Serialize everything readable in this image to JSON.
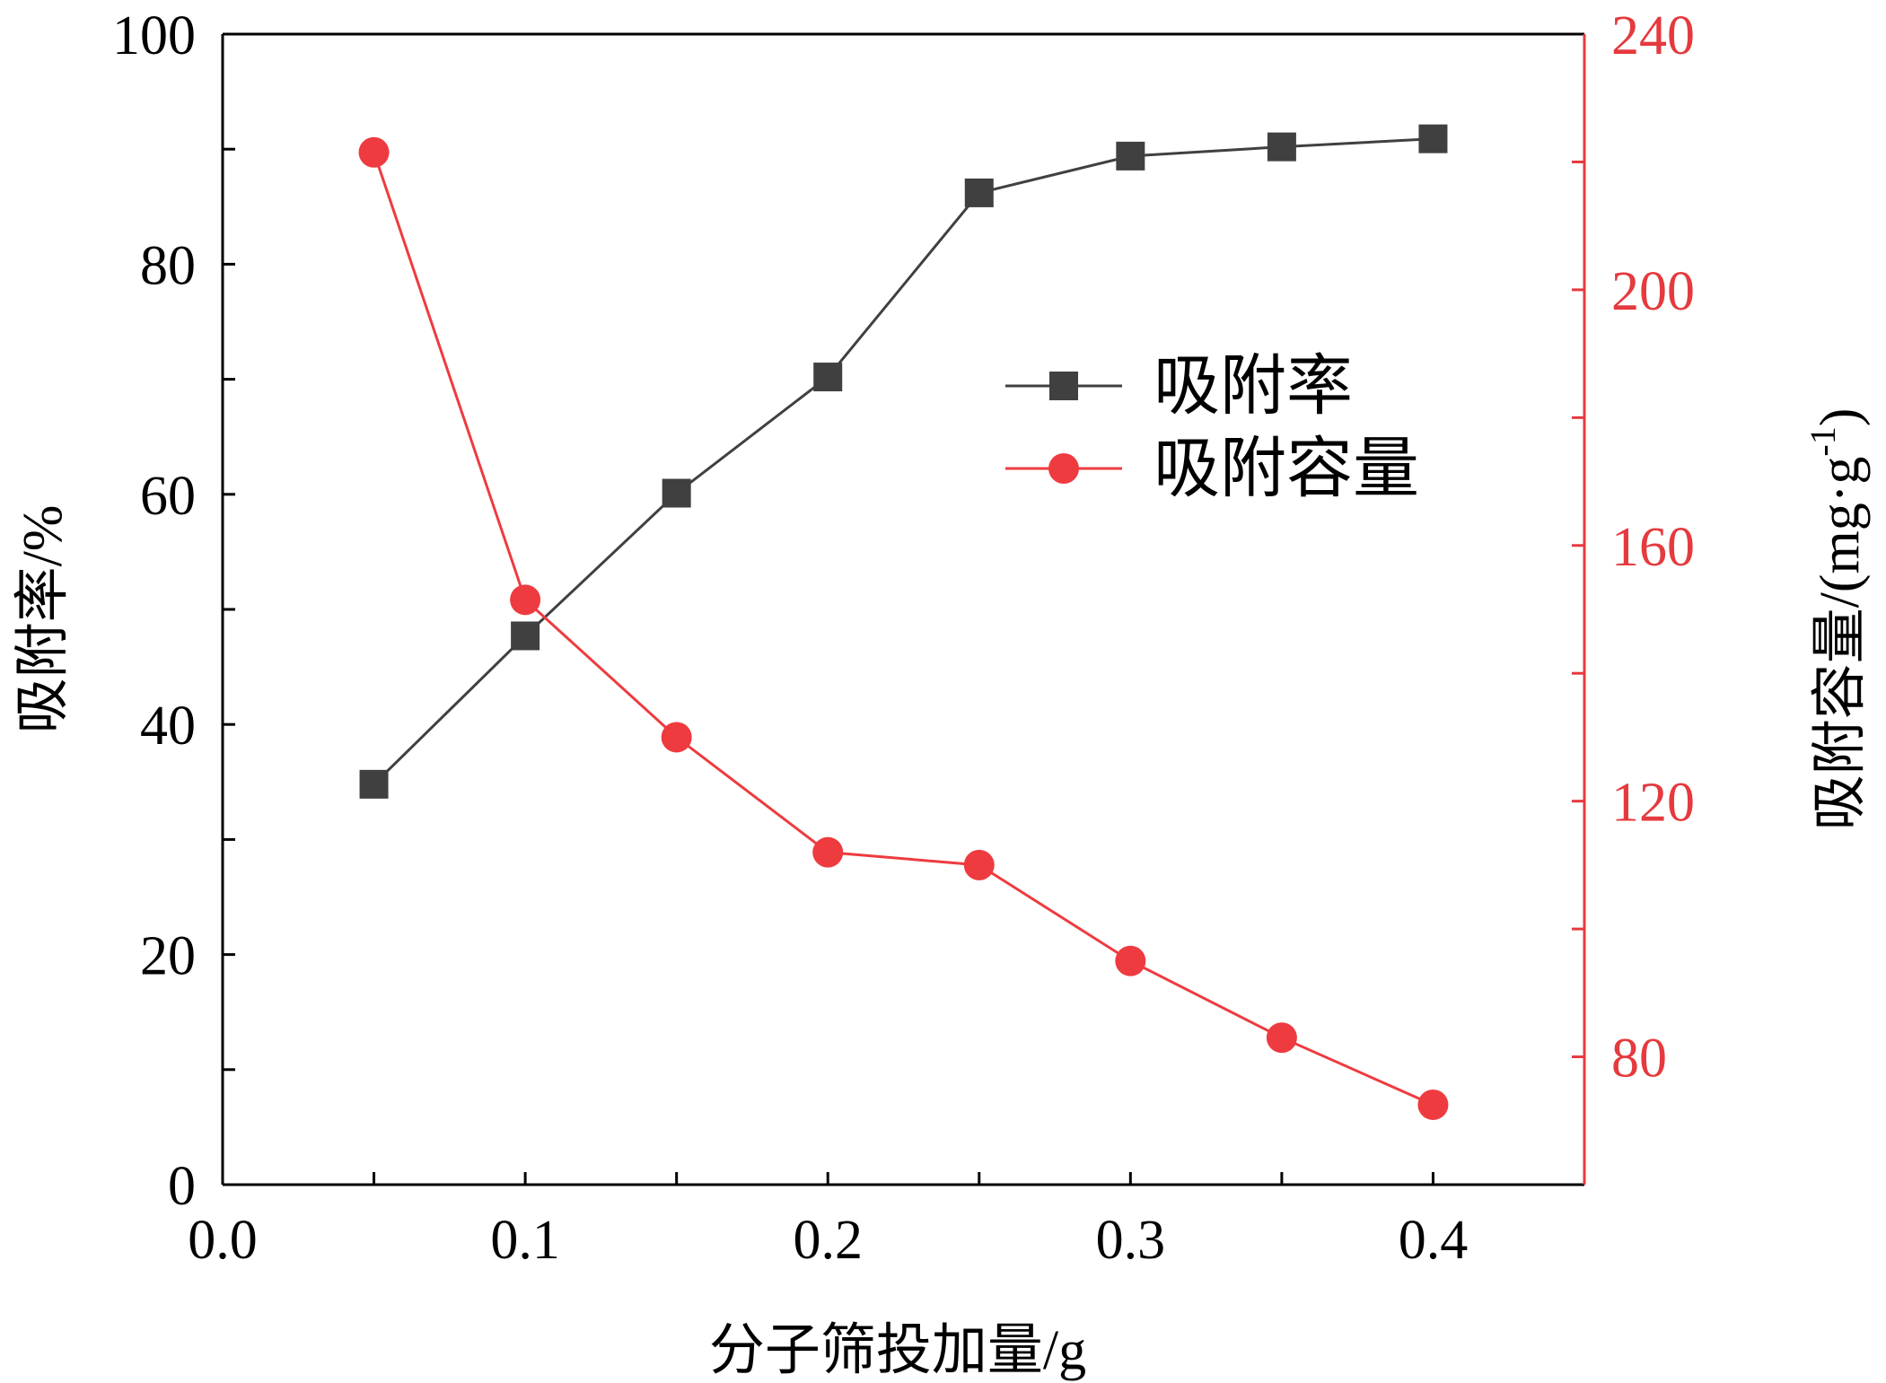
{
  "chart_data": {
    "type": "line",
    "title": "",
    "xlabel": "分子筛投加量/g",
    "ylabel_left": "吸附率/%",
    "ylabel_right": "吸附容量/(mg·g",
    "ylabel_right_sup": "-1",
    "ylabel_right_close": ")",
    "xlim": [
      0.0,
      0.45
    ],
    "ylim_left": [
      0,
      100
    ],
    "ylim_right": [
      60,
      240
    ],
    "x_ticks": [
      "0.0",
      "0.1",
      "0.2",
      "0.3",
      "0.4"
    ],
    "y_left_ticks": [
      "0",
      "20",
      "40",
      "60",
      "80",
      "100"
    ],
    "y_right_ticks": [
      "80",
      "120",
      "160",
      "200",
      "240"
    ],
    "legend_position": "upper-center-right",
    "grid": false,
    "colors": {
      "left_axis": "#000000",
      "right_axis": "#e53a3e",
      "series_1": "#404040",
      "series_2": "#ee3b3f"
    },
    "x": [
      0.05,
      0.1,
      0.15,
      0.2,
      0.25,
      0.3,
      0.35,
      0.4
    ],
    "series": [
      {
        "name": "吸附率",
        "axis": "left",
        "marker": "square",
        "values": [
          34.8,
          47.7,
          60.1,
          70.2,
          86.2,
          89.4,
          90.2,
          90.9
        ]
      },
      {
        "name": "吸附容量",
        "axis": "right",
        "marker": "circle",
        "values": [
          221.5,
          151.5,
          130.0,
          112.0,
          110.0,
          95.0,
          83.0,
          72.5
        ]
      }
    ]
  }
}
